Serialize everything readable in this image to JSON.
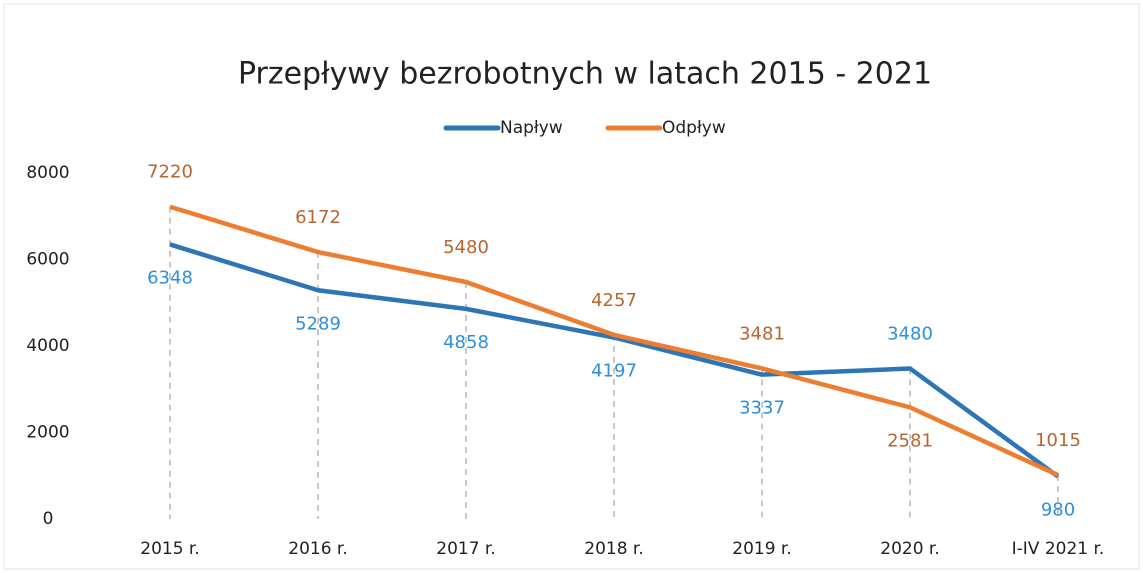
{
  "chart_data": {
    "type": "line",
    "title": "Przepływy bezrobotnych  w latach 2015 - 2021",
    "categories": [
      "2015 r.",
      "2016 r.",
      "2017 r.",
      "2018 r.",
      "2019 r.",
      "2020 r.",
      "I-IV 2021 r."
    ],
    "series": [
      {
        "name": "Napływ",
        "color": "#2e75b6",
        "label_color": "#2f8fd8",
        "values": [
          6348,
          5289,
          4858,
          4197,
          3337,
          3480,
          980
        ]
      },
      {
        "name": "Odpływ",
        "color": "#ed7d31",
        "label_color": "#b9652f",
        "values": [
          7220,
          6172,
          5480,
          4257,
          3481,
          2581,
          1015
        ]
      }
    ],
    "ylim": [
      0,
      8000
    ],
    "yticks": [
      0,
      2000,
      4000,
      6000,
      8000
    ],
    "grid": false,
    "legend": "top"
  }
}
